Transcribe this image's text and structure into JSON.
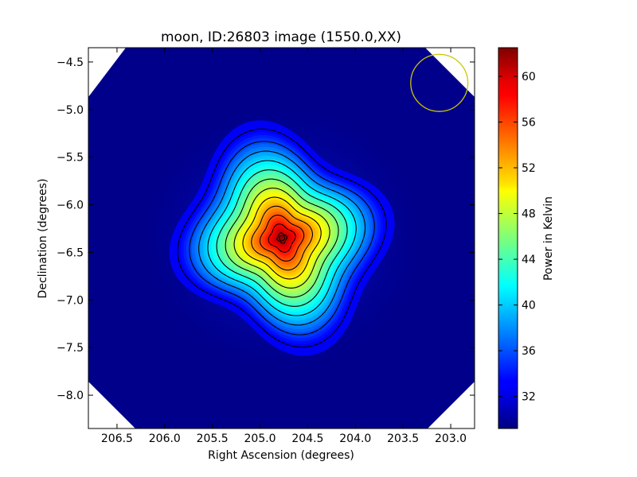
{
  "chart_data": {
    "type": "heatmap",
    "title": "moon, ID:26803 image (1550.0,XX)",
    "xlabel": "Right Ascension (degrees)",
    "ylabel": "Declination (degrees)",
    "xlim": [
      206.8,
      202.75
    ],
    "ylim": [
      -8.35,
      -4.35
    ],
    "x_ticks": [
      206.5,
      206.0,
      205.5,
      205.0,
      204.5,
      204.0,
      203.5,
      203.0
    ],
    "x_tick_labels": [
      "206.5",
      "206.0",
      "205.5",
      "205.0",
      "204.5",
      "204.0",
      "203.5",
      "203.0"
    ],
    "y_ticks": [
      -4.5,
      -5.0,
      -5.5,
      -6.0,
      -6.5,
      -7.0,
      -7.5,
      -8.0
    ],
    "y_tick_labels": [
      "−4.5",
      "−5.0",
      "−5.5",
      "−6.0",
      "−6.5",
      "−7.0",
      "−7.5",
      "−8.0"
    ],
    "colorbar": {
      "label": "Power in Kelvin",
      "range": [
        29.2,
        62.5
      ],
      "ticks": [
        32,
        36,
        40,
        44,
        48,
        52,
        56,
        60
      ],
      "tick_labels": [
        "32",
        "36",
        "40",
        "44",
        "48",
        "52",
        "56",
        "60"
      ],
      "colormap": "jet"
    },
    "source": {
      "center_ra": 204.77,
      "center_dec": -6.35,
      "peak_value": 62.5,
      "background_value": 29.5
    },
    "contour_levels": [
      33,
      36,
      38.5,
      41,
      43.5,
      46,
      48.5,
      51,
      53.5,
      56,
      58.5,
      61,
      62.2
    ],
    "beam_circle": {
      "center_ra": 203.12,
      "center_dec": -4.72,
      "radius_deg": 0.3,
      "color": "#c8c800"
    },
    "grid": false
  }
}
